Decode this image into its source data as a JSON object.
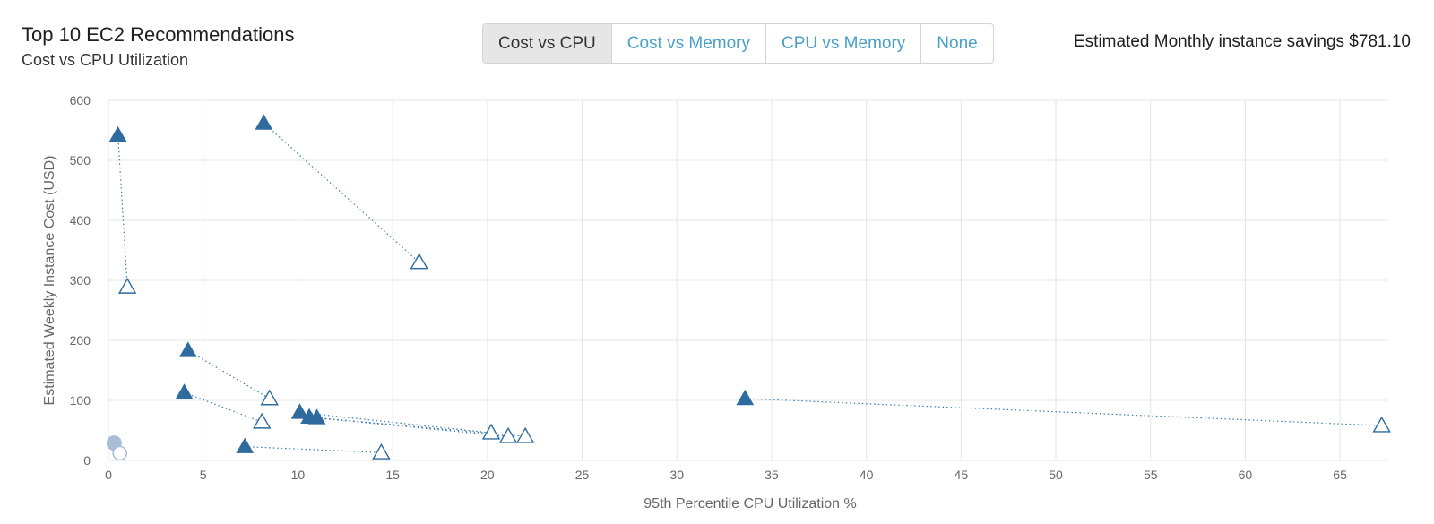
{
  "header": {
    "title": "Top 10 EC2 Recommendations",
    "subtitle": "Cost vs CPU Utilization",
    "savings": "Estimated Monthly instance savings $781.10"
  },
  "toggle": {
    "options": [
      "Cost vs CPU",
      "Cost vs Memory",
      "CPU vs Memory",
      "None"
    ],
    "active_index": 0
  },
  "colors": {
    "current": "#2e6b9e",
    "recommended_stroke": "#2e6b9e",
    "recommended_fill": "#ffffff",
    "connector": "#3a7ab0",
    "noop_fill": "#a9bdd6",
    "grid": "#e6e6e6"
  },
  "chart_data": {
    "type": "scatter",
    "xlabel": "95th Percentile CPU Utilization %",
    "ylabel": "Estimated Weekly Instance Cost (USD)",
    "xlim": [
      0,
      67.5
    ],
    "ylim": [
      0,
      600
    ],
    "xticks": [
      0,
      5,
      10,
      15,
      20,
      25,
      30,
      35,
      40,
      45,
      50,
      55,
      60,
      65
    ],
    "yticks": [
      0,
      100,
      200,
      300,
      400,
      500,
      600
    ],
    "pairs": [
      {
        "current": [
          0.5,
          542
        ],
        "recommended": [
          1.0,
          289
        ]
      },
      {
        "current": [
          8.2,
          562
        ],
        "recommended": [
          16.4,
          330
        ]
      },
      {
        "current": [
          4.2,
          183
        ],
        "recommended": [
          8.5,
          103
        ]
      },
      {
        "current": [
          4.0,
          113
        ],
        "recommended": [
          8.1,
          64
        ]
      },
      {
        "current": [
          10.1,
          80
        ],
        "recommended": [
          20.2,
          46
        ]
      },
      {
        "current": [
          10.6,
          72
        ],
        "recommended": [
          21.1,
          40
        ]
      },
      {
        "current": [
          11.0,
          71
        ],
        "recommended": [
          22.0,
          40
        ]
      },
      {
        "current": [
          7.2,
          23
        ],
        "recommended": [
          14.4,
          13
        ]
      },
      {
        "current": [
          33.6,
          103
        ],
        "recommended": [
          67.2,
          58
        ]
      }
    ],
    "noop_pair": {
      "current": [
        0.3,
        29
      ],
      "recommended": [
        0.6,
        12
      ]
    }
  }
}
